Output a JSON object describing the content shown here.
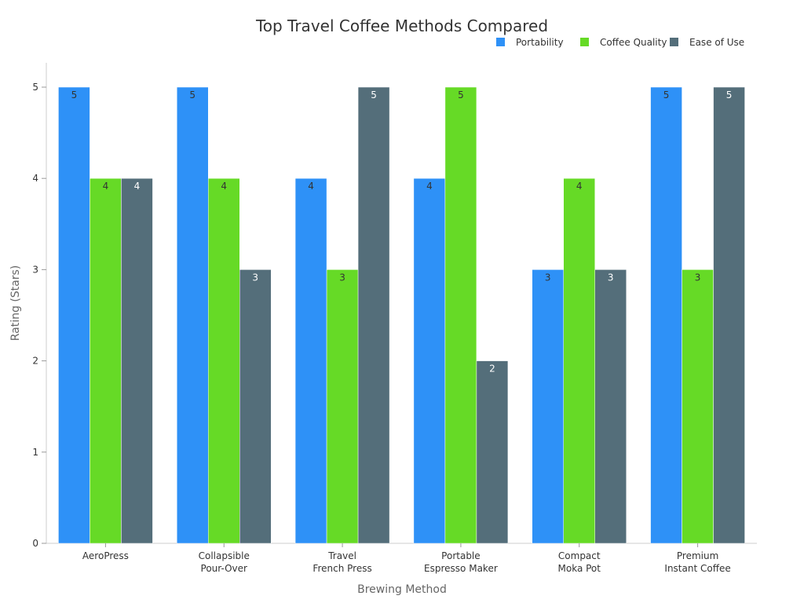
{
  "chart_data": {
    "type": "bar",
    "title": "Top Travel Coffee Methods Compared",
    "xlabel": "Brewing Method",
    "ylabel": "Rating (Stars)",
    "ylim": [
      0,
      5
    ],
    "yticks": [
      "0",
      "1",
      "2",
      "3",
      "4",
      "5"
    ],
    "categories": [
      [
        "AeroPress"
      ],
      [
        "Collapsible",
        "Pour-Over"
      ],
      [
        "Travel",
        "French Press"
      ],
      [
        "Portable",
        "Espresso Maker"
      ],
      [
        "Compact",
        "Moka Pot"
      ],
      [
        "Premium",
        "Instant Coffee"
      ]
    ],
    "series": [
      {
        "name": "Portability",
        "color": "#2E91F7",
        "label_color": "#333333",
        "values": [
          5,
          5,
          4,
          4,
          3,
          5
        ]
      },
      {
        "name": "Coffee Quality",
        "color": "#66DA26",
        "label_color": "#333333",
        "values": [
          4,
          4,
          3,
          5,
          4,
          3
        ]
      },
      {
        "name": "Ease of Use",
        "color": "#546E7A",
        "label_color": "#ffffff",
        "values": [
          4,
          3,
          5,
          2,
          3,
          5
        ]
      }
    ],
    "legend_position": "top-right",
    "grid": false
  }
}
